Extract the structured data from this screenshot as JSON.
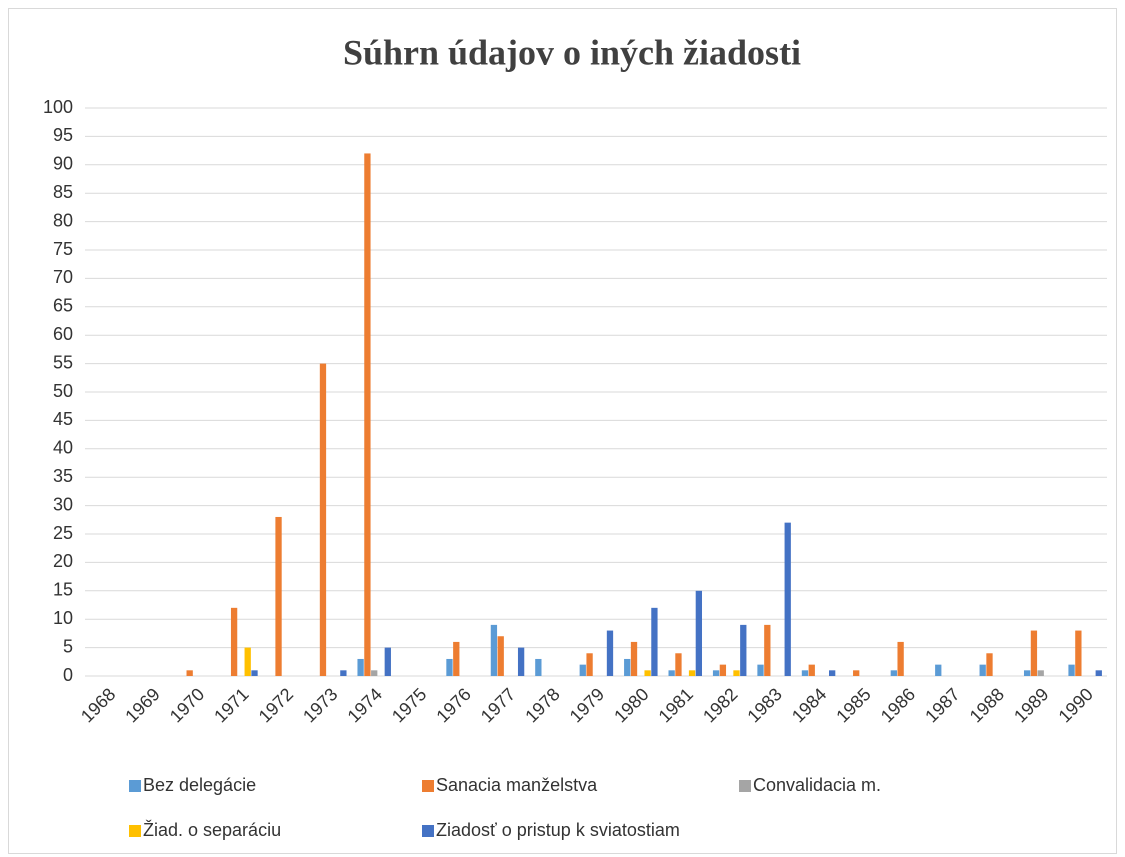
{
  "chart_data": {
    "type": "bar",
    "title": "Súhrn údajov o iných žiadosti",
    "categories": [
      "1968",
      "1969",
      "1970",
      "1971",
      "1972",
      "1973",
      "1974",
      "1975",
      "1976",
      "1977",
      "1978",
      "1979",
      "1980",
      "1981",
      "1982",
      "1983",
      "1984",
      "1985",
      "1986",
      "1987",
      "1988",
      "1989",
      "1990"
    ],
    "series": [
      {
        "name": "Bez delegácie",
        "color": "#5b9bd5",
        "values": [
          0,
          0,
          0,
          0,
          0,
          0,
          3,
          0,
          3,
          9,
          3,
          2,
          3,
          1,
          1,
          2,
          1,
          0,
          1,
          2,
          2,
          1,
          2
        ]
      },
      {
        "name": "Sanacia manželstva",
        "color": "#ed7d31",
        "values": [
          0,
          0,
          1,
          12,
          28,
          55,
          92,
          0,
          6,
          7,
          0,
          4,
          6,
          4,
          2,
          9,
          2,
          1,
          6,
          0,
          4,
          8,
          8
        ]
      },
      {
        "name": "Convalidacia m.",
        "color": "#a5a5a5",
        "values": [
          0,
          0,
          0,
          0,
          0,
          0,
          1,
          0,
          0,
          0,
          0,
          0,
          0,
          0,
          0,
          0,
          0,
          0,
          0,
          0,
          0,
          1,
          0
        ]
      },
      {
        "name": "Žiad. o separáciu",
        "color": "#ffc000",
        "values": [
          0,
          0,
          0,
          5,
          0,
          0,
          0,
          0,
          0,
          0,
          0,
          0,
          1,
          1,
          1,
          0,
          0,
          0,
          0,
          0,
          0,
          0,
          0
        ]
      },
      {
        "name": "Ziadosť o pristup k sviatostiam",
        "color": "#4472c4",
        "values": [
          0,
          0,
          0,
          1,
          0,
          1,
          5,
          0,
          0,
          5,
          0,
          8,
          12,
          15,
          9,
          27,
          1,
          0,
          0,
          0,
          0,
          0,
          1
        ]
      }
    ],
    "ylim": [
      0,
      100
    ],
    "yticks": [
      0,
      5,
      10,
      15,
      20,
      25,
      30,
      35,
      40,
      45,
      50,
      55,
      60,
      65,
      70,
      75,
      80,
      85,
      90,
      95,
      100
    ],
    "grid": true,
    "legend": "bottom"
  }
}
